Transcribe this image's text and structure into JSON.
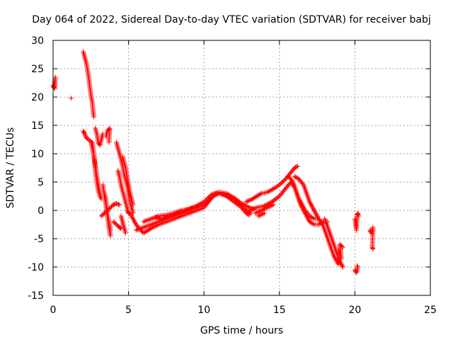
{
  "chart_data": {
    "type": "scatter",
    "title": "Day 064 of 2022, Sidereal Day-to-day VTEC variation (SDTVAR) for receiver babj",
    "xlabel": "GPS time / hours",
    "ylabel": "SDTVAR / TECUs",
    "xlim": [
      0,
      25
    ],
    "ylim": [
      -15,
      30
    ],
    "x_ticks": [
      0,
      5,
      10,
      15,
      20,
      25
    ],
    "y_ticks": [
      -15,
      -10,
      -5,
      0,
      5,
      10,
      15,
      20,
      25,
      30
    ],
    "x_tick_labels": [
      "0",
      "5",
      "10",
      "15",
      "20",
      "25"
    ],
    "y_tick_labels": [
      "-15",
      "-10",
      "-5",
      "0",
      "5",
      "10",
      "15",
      "20",
      "25",
      "30"
    ],
    "grid": true,
    "marker": "plus",
    "series_color": "#ff0000",
    "tracks": [
      [
        [
          0.0,
          22.0
        ],
        [
          0.1,
          21.5
        ],
        [
          0.15,
          23.5
        ],
        [
          0.05,
          21.8
        ]
      ],
      [
        [
          1.2,
          19.8
        ]
      ],
      [
        [
          2.0,
          28.0
        ],
        [
          2.1,
          27.0
        ],
        [
          2.2,
          26.0
        ],
        [
          2.3,
          24.5
        ],
        [
          2.4,
          22.5
        ],
        [
          2.5,
          20.5
        ],
        [
          2.6,
          19.0
        ],
        [
          2.65,
          17.5
        ],
        [
          2.7,
          16.5
        ]
      ],
      [
        [
          2.0,
          14.0
        ],
        [
          2.1,
          13.5
        ],
        [
          2.2,
          12.8
        ],
        [
          2.35,
          12.5
        ],
        [
          2.5,
          12.2
        ],
        [
          2.6,
          11.0
        ],
        [
          2.7,
          9.5
        ],
        [
          2.8,
          8.0
        ],
        [
          2.9,
          6.0
        ],
        [
          3.0,
          4.5
        ],
        [
          3.1,
          3.0
        ],
        [
          3.2,
          2.0
        ]
      ],
      [
        [
          2.8,
          14.5
        ],
        [
          2.9,
          13.5
        ],
        [
          3.0,
          12.0
        ],
        [
          3.1,
          11.5
        ],
        [
          3.2,
          12.5
        ],
        [
          3.3,
          13.5
        ]
      ],
      [
        [
          2.6,
          12.0
        ],
        [
          2.7,
          10.0
        ],
        [
          2.8,
          7.0
        ],
        [
          2.9,
          5.0
        ],
        [
          3.0,
          3.5
        ],
        [
          3.1,
          2.5
        ]
      ],
      [
        [
          3.5,
          13.0
        ],
        [
          3.6,
          14.0
        ],
        [
          3.75,
          14.5
        ],
        [
          3.7,
          12.0
        ]
      ],
      [
        [
          3.3,
          4.5
        ],
        [
          3.4,
          2.5
        ],
        [
          3.5,
          1.0
        ],
        [
          3.6,
          -1.0
        ],
        [
          3.7,
          -3.0
        ],
        [
          3.8,
          -4.5
        ]
      ],
      [
        [
          3.2,
          -1.0
        ],
        [
          3.4,
          -0.5
        ],
        [
          3.6,
          0.0
        ],
        [
          3.8,
          0.5
        ],
        [
          4.0,
          1.0
        ],
        [
          4.2,
          1.2
        ],
        [
          4.4,
          1.0
        ]
      ],
      [
        [
          4.0,
          -2.0
        ],
        [
          4.2,
          -2.5
        ],
        [
          4.4,
          -3.0
        ],
        [
          4.5,
          -3.2
        ]
      ],
      [
        [
          3.4,
          3.0
        ],
        [
          3.5,
          2.0
        ],
        [
          3.55,
          0.5
        ],
        [
          3.6,
          -0.5
        ],
        [
          3.7,
          -2.0
        ],
        [
          3.8,
          -3.5
        ]
      ],
      [
        [
          4.2,
          12.0
        ],
        [
          4.3,
          11.0
        ],
        [
          4.4,
          10.0
        ],
        [
          4.5,
          9.0
        ],
        [
          4.6,
          8.0
        ],
        [
          4.7,
          6.5
        ],
        [
          4.8,
          5.5
        ],
        [
          4.9,
          4.5
        ],
        [
          5.0,
          3.0
        ],
        [
          5.1,
          1.5
        ],
        [
          5.2,
          0.5
        ],
        [
          5.3,
          -0.5
        ]
      ],
      [
        [
          4.3,
          7.0
        ],
        [
          4.4,
          6.0
        ],
        [
          4.5,
          4.5
        ],
        [
          4.6,
          3.5
        ],
        [
          4.7,
          2.5
        ],
        [
          4.8,
          1.5
        ],
        [
          4.9,
          0.5
        ],
        [
          5.0,
          -0.5
        ]
      ],
      [
        [
          4.6,
          9.5
        ],
        [
          4.7,
          8.5
        ],
        [
          4.8,
          7.5
        ],
        [
          4.9,
          6.0
        ],
        [
          5.0,
          4.5
        ],
        [
          5.1,
          3.0
        ],
        [
          5.2,
          2.0
        ],
        [
          5.3,
          1.0
        ]
      ],
      [
        [
          4.5,
          -1.0
        ],
        [
          4.6,
          -2.0
        ],
        [
          4.7,
          -3.0
        ],
        [
          4.8,
          -4.0
        ]
      ],
      [
        [
          4.9,
          0.0
        ],
        [
          5.2,
          -1.0
        ],
        [
          5.5,
          -2.5
        ],
        [
          5.8,
          -3.5
        ],
        [
          6.0,
          -4.0
        ],
        [
          6.3,
          -3.5
        ],
        [
          6.6,
          -3.0
        ],
        [
          7.0,
          -2.5
        ],
        [
          7.5,
          -2.0
        ],
        [
          8.0,
          -1.5
        ],
        [
          8.5,
          -1.0
        ],
        [
          9.0,
          -0.5
        ],
        [
          9.5,
          0.0
        ],
        [
          10.0,
          0.5
        ],
        [
          10.3,
          1.5
        ],
        [
          10.6,
          2.5
        ],
        [
          11.0,
          3.0
        ],
        [
          11.5,
          2.5
        ],
        [
          12.0,
          1.5
        ],
        [
          12.5,
          0.5
        ],
        [
          12.8,
          -0.5
        ],
        [
          13.0,
          -0.8
        ]
      ],
      [
        [
          5.5,
          -3.5
        ],
        [
          6.0,
          -3.0
        ],
        [
          6.5,
          -2.5
        ],
        [
          7.0,
          -2.0
        ],
        [
          7.5,
          -1.5
        ],
        [
          8.0,
          -1.0
        ],
        [
          8.5,
          -0.5
        ],
        [
          9.0,
          0.0
        ],
        [
          9.5,
          0.5
        ],
        [
          10.0,
          1.0
        ],
        [
          10.4,
          2.0
        ],
        [
          10.8,
          3.0
        ],
        [
          11.2,
          3.0
        ],
        [
          11.6,
          2.5
        ],
        [
          12.0,
          2.0
        ],
        [
          12.4,
          1.0
        ],
        [
          12.8,
          0.0
        ],
        [
          13.1,
          -0.5
        ]
      ],
      [
        [
          6.0,
          -2.0
        ],
        [
          6.5,
          -1.5
        ],
        [
          7.0,
          -1.0
        ],
        [
          7.5,
          -0.8
        ],
        [
          8.0,
          -0.5
        ],
        [
          8.5,
          0.0
        ],
        [
          9.0,
          0.2
        ],
        [
          9.5,
          0.8
        ],
        [
          10.0,
          1.5
        ],
        [
          10.5,
          2.8
        ],
        [
          11.0,
          3.2
        ],
        [
          11.5,
          3.0
        ],
        [
          12.0,
          2.2
        ],
        [
          12.5,
          1.2
        ],
        [
          13.0,
          0.5
        ],
        [
          13.3,
          0.2
        ]
      ],
      [
        [
          6.8,
          -1.2
        ],
        [
          7.2,
          -1.5
        ],
        [
          7.6,
          -1.0
        ],
        [
          8.0,
          -0.8
        ],
        [
          8.6,
          -0.2
        ],
        [
          9.2,
          0.4
        ]
      ],
      [
        [
          12.8,
          1.5
        ],
        [
          13.2,
          2.0
        ],
        [
          13.5,
          2.5
        ],
        [
          13.8,
          3.0
        ],
        [
          14.2,
          3.2
        ],
        [
          14.6,
          3.8
        ],
        [
          15.0,
          4.5
        ],
        [
          15.4,
          5.5
        ],
        [
          15.7,
          6.5
        ],
        [
          16.0,
          7.5
        ],
        [
          16.2,
          7.8
        ]
      ],
      [
        [
          13.0,
          0.0
        ],
        [
          13.5,
          0.5
        ],
        [
          14.0,
          0.8
        ],
        [
          14.5,
          1.5
        ],
        [
          15.0,
          2.5
        ],
        [
          15.3,
          3.5
        ],
        [
          15.6,
          4.5
        ],
        [
          15.8,
          5.0
        ],
        [
          16.0,
          4.0
        ],
        [
          16.2,
          2.5
        ],
        [
          16.4,
          1.0
        ],
        [
          16.6,
          0.0
        ],
        [
          16.8,
          -1.0
        ],
        [
          17.0,
          -2.0
        ],
        [
          17.3,
          -2.5
        ],
        [
          17.6,
          -2.5
        ],
        [
          17.9,
          -2.0
        ]
      ],
      [
        [
          15.6,
          6.0
        ],
        [
          15.9,
          5.0
        ],
        [
          16.1,
          3.5
        ],
        [
          16.3,
          2.0
        ],
        [
          16.5,
          1.0
        ],
        [
          16.7,
          0.0
        ],
        [
          17.0,
          -1.0
        ],
        [
          17.3,
          -1.5
        ],
        [
          17.6,
          -1.5
        ]
      ],
      [
        [
          16.0,
          6.0
        ],
        [
          16.3,
          5.5
        ],
        [
          16.6,
          4.5
        ],
        [
          16.8,
          3.0
        ],
        [
          17.0,
          1.5
        ],
        [
          17.2,
          0.5
        ],
        [
          17.4,
          -0.5
        ],
        [
          17.6,
          -1.5
        ],
        [
          17.9,
          -2.5
        ]
      ],
      [
        [
          13.4,
          -0.5
        ],
        [
          13.8,
          0.0
        ],
        [
          14.2,
          0.5
        ],
        [
          14.6,
          1.0
        ]
      ],
      [
        [
          13.6,
          -1.0
        ],
        [
          14.0,
          -0.5
        ]
      ],
      [
        [
          18.0,
          -1.5
        ],
        [
          18.2,
          -3.0
        ],
        [
          18.4,
          -4.5
        ],
        [
          18.6,
          -6.0
        ],
        [
          18.8,
          -7.5
        ],
        [
          19.0,
          -9.0
        ],
        [
          19.2,
          -10.0
        ]
      ],
      [
        [
          17.8,
          -2.0
        ],
        [
          18.0,
          -3.5
        ],
        [
          18.2,
          -5.0
        ],
        [
          18.4,
          -6.5
        ],
        [
          18.6,
          -8.0
        ],
        [
          18.9,
          -9.5
        ]
      ],
      [
        [
          18.9,
          -7.0
        ],
        [
          19.1,
          -8.5
        ],
        [
          19.0,
          -6.0
        ],
        [
          19.2,
          -6.5
        ]
      ],
      [
        [
          18.2,
          -2.0
        ]
      ],
      [
        [
          20.0,
          -1.5
        ],
        [
          20.05,
          -2.5
        ],
        [
          20.1,
          -3.5
        ],
        [
          20.15,
          -0.8
        ],
        [
          20.2,
          -0.5
        ],
        [
          20.25,
          -1.0
        ]
      ],
      [
        [
          20.0,
          -10.5
        ],
        [
          20.1,
          -11.0
        ],
        [
          20.2,
          -10.0
        ],
        [
          20.15,
          -9.8
        ]
      ],
      [
        [
          21.0,
          -3.5
        ],
        [
          21.1,
          -4.0
        ],
        [
          21.2,
          -3.0
        ],
        [
          21.15,
          -6.5
        ],
        [
          21.2,
          -6.8
        ]
      ]
    ]
  }
}
